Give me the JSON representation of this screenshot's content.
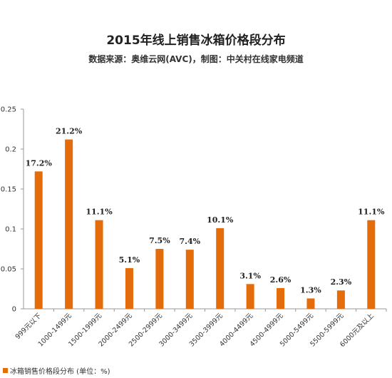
{
  "chart_data": {
    "type": "bar",
    "title": "2015年线上销售冰箱价格段分布",
    "subtitle": "数据来源：奥维云网(AVC)，制图：中关村在线家电频道",
    "categories": [
      "999元以下",
      "1000-1499元",
      "1500-1999元",
      "2000-2499元",
      "2500-2999元",
      "3000-3499元",
      "3500-3999元",
      "4000-4499元",
      "4500-4999元",
      "5000-5499元",
      "5500-5999元",
      "6000元及以上"
    ],
    "series": [
      {
        "name": "冰箱销售价格段分布 (单位：%)",
        "values": [
          0.172,
          0.212,
          0.111,
          0.051,
          0.075,
          0.074,
          0.101,
          0.031,
          0.026,
          0.013,
          0.023,
          0.111
        ],
        "labels": [
          "17.2%",
          "21.2%",
          "11.1%",
          "5.1%",
          "7.5%",
          "7.4%",
          "10.1%",
          "3.1%",
          "2.6%",
          "1.3%",
          "2.3%",
          "11.1%"
        ]
      }
    ],
    "yticks": [
      "0",
      "0.05",
      "0.1",
      "0.15",
      "0.2",
      "0.25"
    ],
    "ylim": [
      0,
      0.25
    ],
    "grid": false,
    "legend": "bottom-left",
    "colors": {
      "bar": "#E46C0A",
      "axis": "#999999"
    }
  }
}
